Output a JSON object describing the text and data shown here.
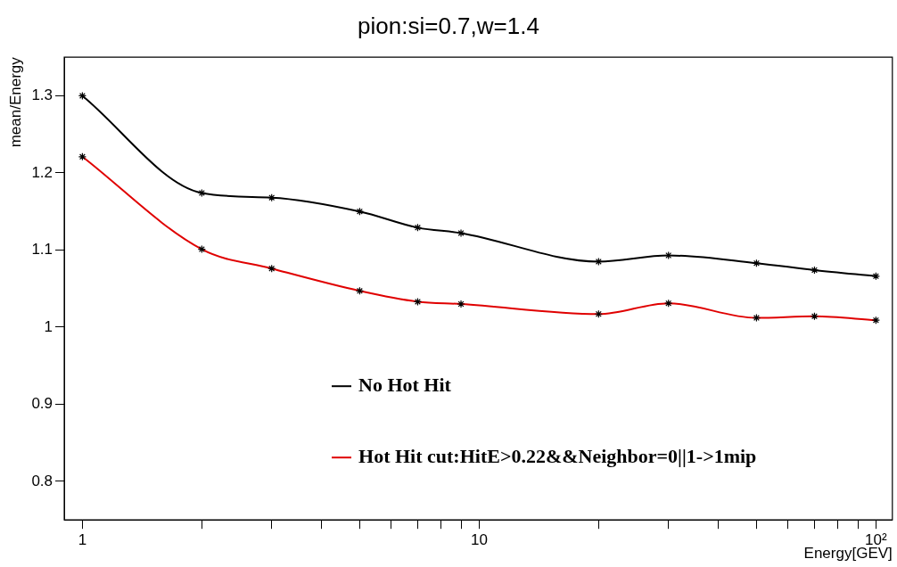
{
  "chart_data": {
    "type": "line",
    "title": "pion:si=0.7,w=1.4",
    "xlabel": "Energy[GEV]",
    "ylabel": "mean/Energy",
    "x": [
      1,
      2,
      3,
      5,
      7,
      9,
      20,
      30,
      50,
      70,
      100
    ],
    "series": [
      {
        "name": "No Hot Hit",
        "color": "#000000",
        "values": [
          1.3,
          1.174,
          1.168,
          1.15,
          1.129,
          1.122,
          1.085,
          1.093,
          1.083,
          1.074,
          1.066
        ]
      },
      {
        "name": "Hot Hit cut:HitE>0.22&&Neighbor=0||1->1mip",
        "color": "#e00000",
        "values": [
          1.221,
          1.101,
          1.076,
          1.047,
          1.033,
          1.03,
          1.017,
          1.031,
          1.012,
          1.014,
          1.009
        ]
      }
    ],
    "log": "x",
    "xlim": [
      0.9,
      110
    ],
    "xticks": [
      1,
      {
        "value": 2,
        "label": null
      },
      {
        "value": 3,
        "label": null
      },
      {
        "value": 4,
        "label": null
      },
      {
        "value": 5,
        "label": null
      },
      {
        "value": 6,
        "label": null
      },
      {
        "value": 7,
        "label": null
      },
      {
        "value": 8,
        "label": null
      },
      {
        "value": 9,
        "label": null
      },
      10,
      {
        "value": 20,
        "label": null
      },
      {
        "value": 30,
        "label": null
      },
      {
        "value": 40,
        "label": null
      },
      {
        "value": 50,
        "label": null
      },
      {
        "value": 60,
        "label": null
      },
      {
        "value": 70,
        "label": null
      },
      {
        "value": 80,
        "label": null
      },
      {
        "value": 90,
        "label": null
      },
      {
        "value": 100,
        "label": "10²"
      }
    ],
    "ylim": [
      0.75,
      1.35
    ],
    "yticks": [
      0.8,
      0.9,
      1,
      1.1,
      1.2,
      1.3
    ],
    "grid": false,
    "legend": "bottom",
    "marker": "cross",
    "line_style": "solid"
  }
}
